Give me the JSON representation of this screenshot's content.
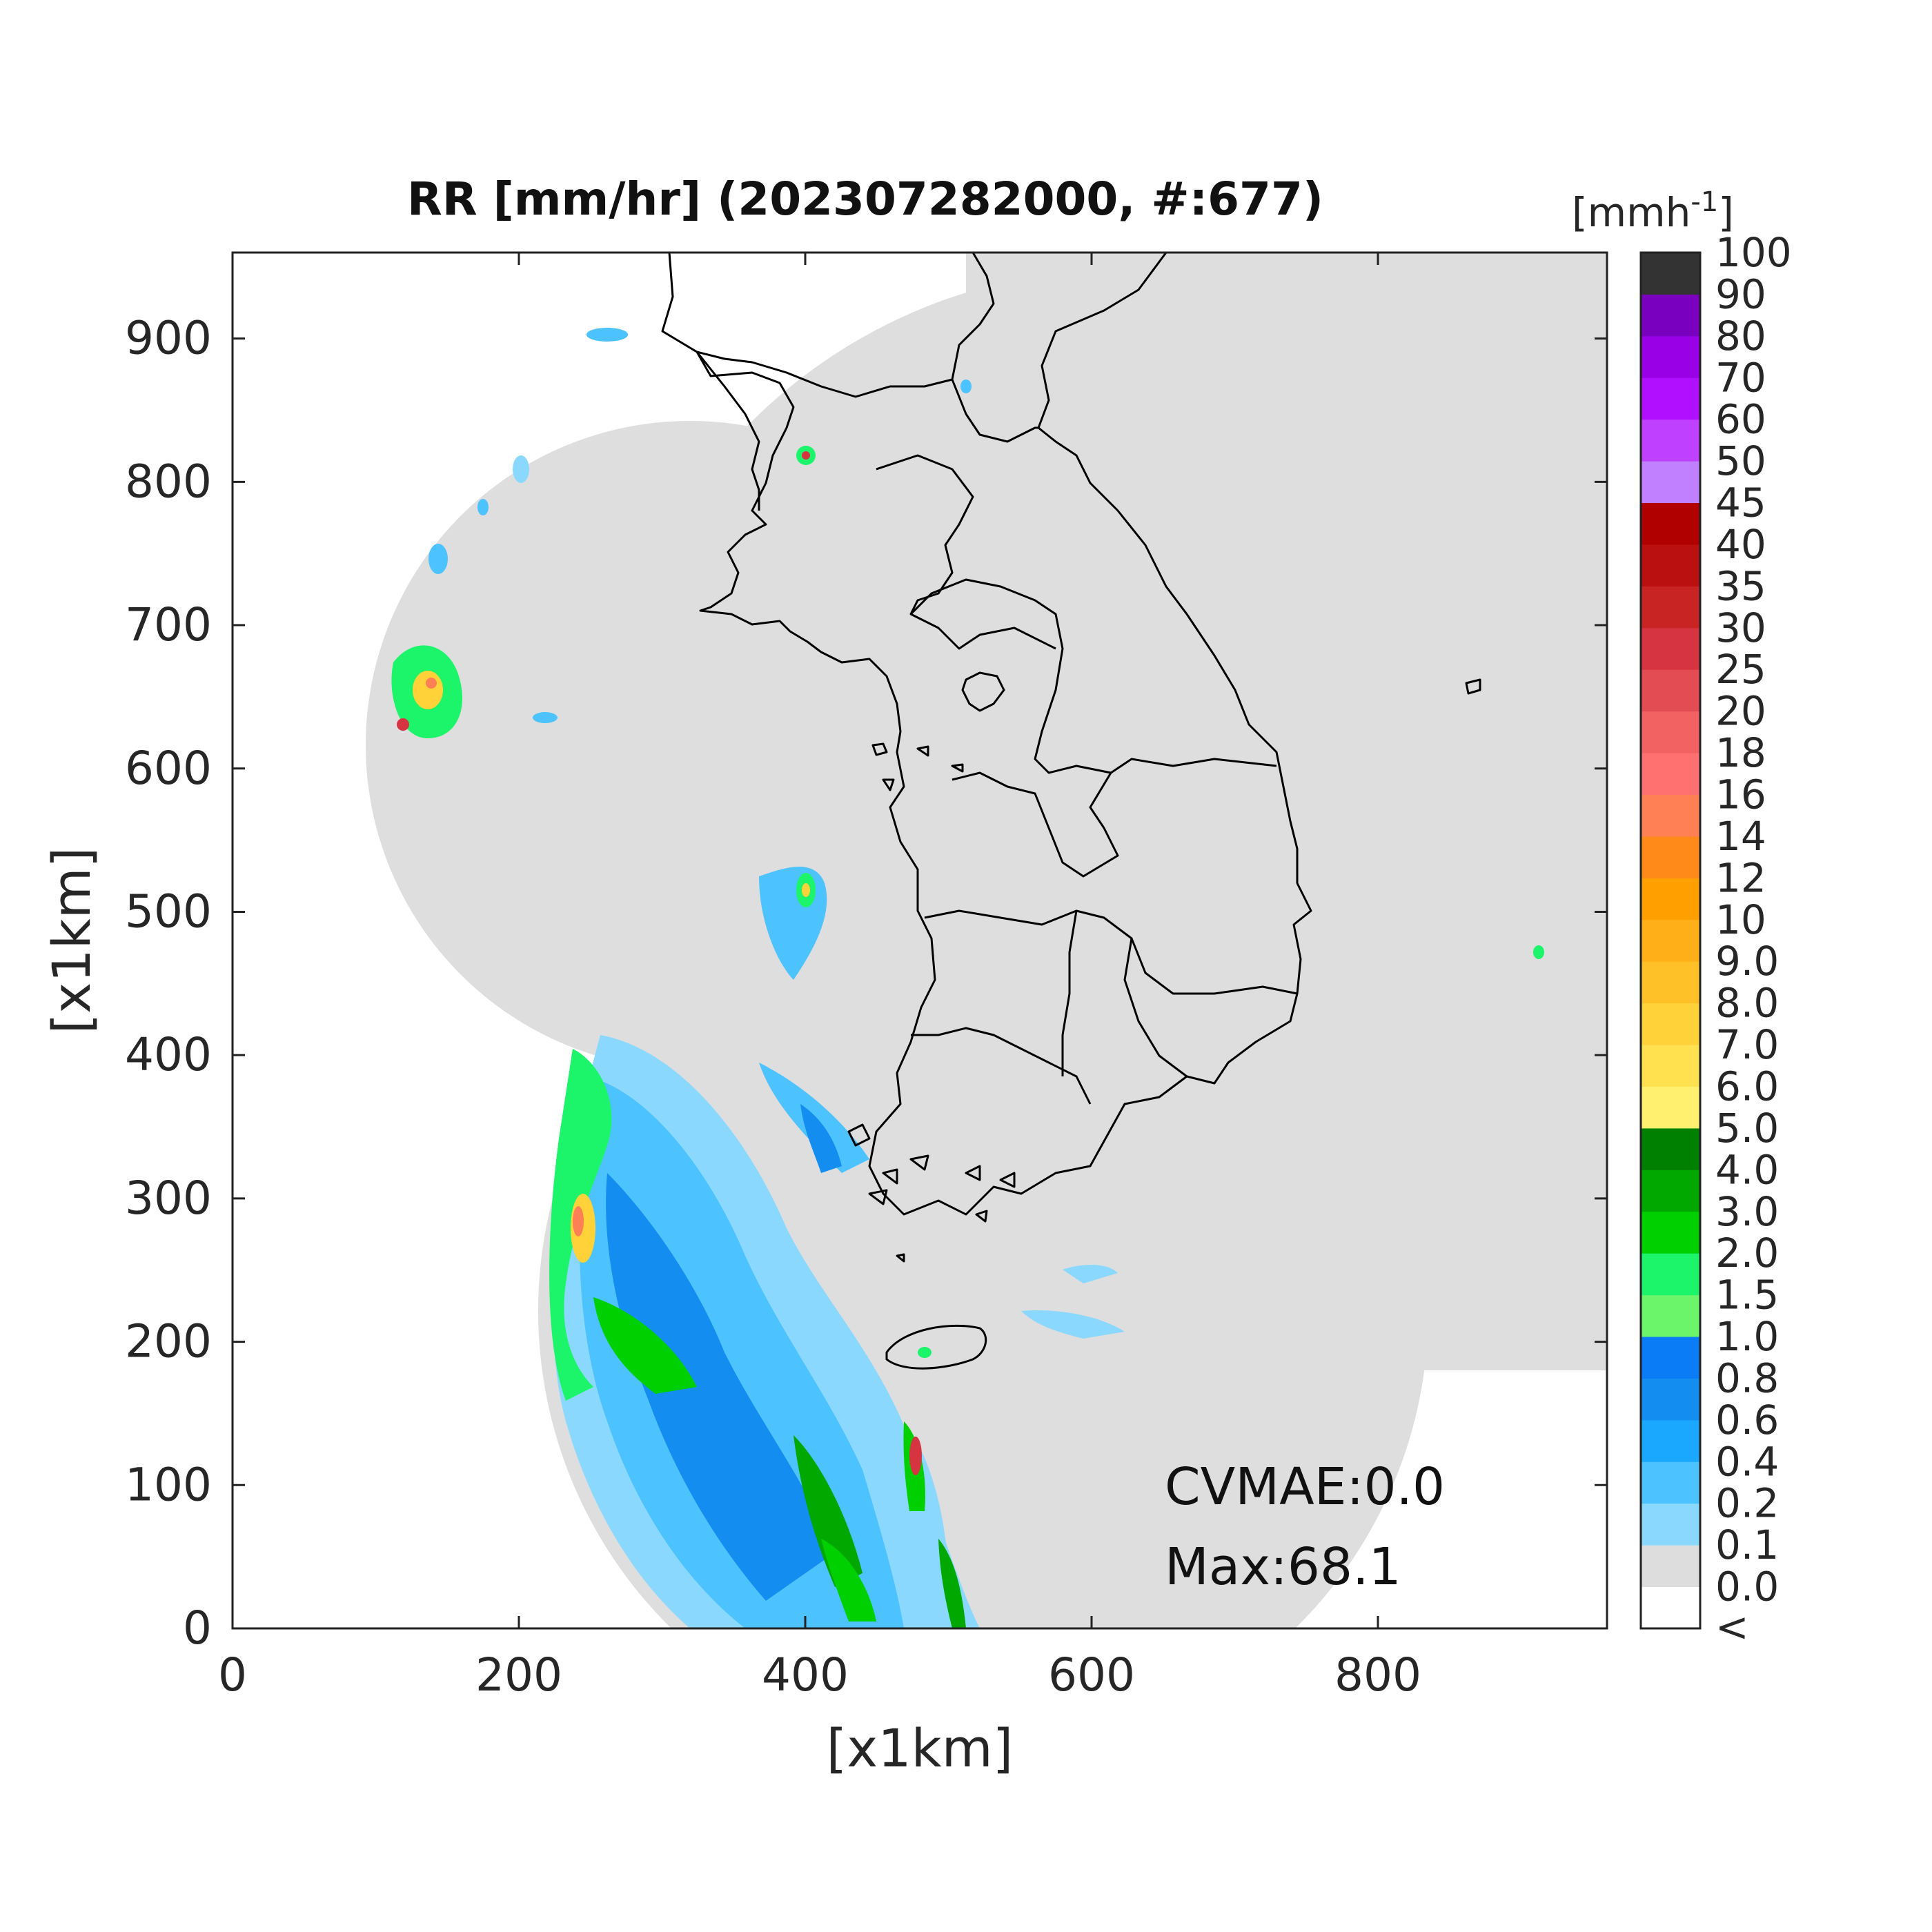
{
  "title": "RR [mm/hr] (202307282000, #:677)",
  "axes": {
    "xlabel": "[x1km]",
    "ylabel": "[x1km]",
    "xlim": [
      0,
      960
    ],
    "ylim": [
      0,
      960
    ],
    "xticks": [
      "0",
      "200",
      "400",
      "600",
      "800"
    ],
    "yticks": [
      "0",
      "100",
      "200",
      "300",
      "400",
      "500",
      "600",
      "700",
      "800",
      "900"
    ]
  },
  "colorbar": {
    "unit": "[mmh",
    "unit_sup": "-1",
    "unit_close": "]",
    "labels": [
      "<",
      "0.0",
      "0.1",
      "0.2",
      "0.4",
      "0.6",
      "0.8",
      "1.0",
      "1.5",
      "2.0",
      "3.0",
      "4.0",
      "5.0",
      "6.0",
      "7.0",
      "8.0",
      "9.0",
      "10",
      "12",
      "14",
      "16",
      "18",
      "20",
      "25",
      "30",
      "35",
      "40",
      "45",
      "50",
      "60",
      "70",
      "80",
      "90",
      "100"
    ],
    "colors": [
      "#ffffff",
      "#dddddd",
      "#8bd8ff",
      "#4cc2ff",
      "#1aa8ff",
      "#138df0",
      "#0a7cf5",
      "#6af56a",
      "#1cf46a",
      "#00d000",
      "#00a800",
      "#008000",
      "#fff070",
      "#ffe04e",
      "#ffd23a",
      "#ffc028",
      "#ffb018",
      "#ffa000",
      "#ff8a1a",
      "#ff8055",
      "#ff7070",
      "#f26262",
      "#e44c54",
      "#d63440",
      "#c82424",
      "#bb1010",
      "#b00000",
      "#c080ff",
      "#c040ff",
      "#b010ff",
      "#9a00e6",
      "#7a00c0",
      "#333333"
    ]
  },
  "annotations": {
    "cvmae": "CVMAE:0.0",
    "max": "Max:68.1"
  },
  "colors": {
    "coverage": "#dedede",
    "background": "#ffffff",
    "coastline": "#000000"
  }
}
